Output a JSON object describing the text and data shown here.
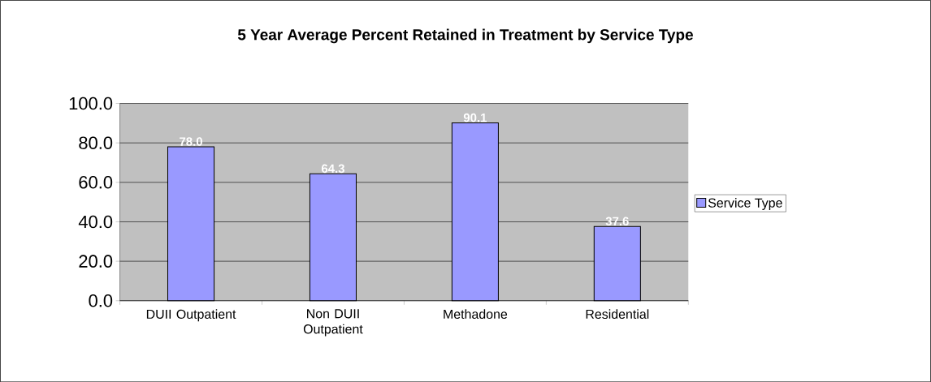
{
  "chart_data": {
    "type": "bar",
    "title": "5 Year Average Percent Retained in Treatment  by Service Type",
    "categories": [
      "DUII Outpatient",
      "Non DUII Outpatient",
      "Methadone",
      "Residential"
    ],
    "series": [
      {
        "name": "Service Type",
        "color": "#9999ff",
        "values": [
          78.0,
          64.3,
          90.1,
          37.6
        ],
        "value_labels": [
          "78.0",
          "64.3",
          "90.1",
          "37.6"
        ]
      }
    ],
    "ylim": [
      0,
      100
    ],
    "yticks": [
      {
        "value": 0,
        "label": "0.0"
      },
      {
        "value": 20,
        "label": "20.0"
      },
      {
        "value": 40,
        "label": "40.0"
      },
      {
        "value": 60,
        "label": "60.0"
      },
      {
        "value": 80,
        "label": "80.0"
      },
      {
        "value": 100,
        "label": "100.0"
      }
    ],
    "grid": "y",
    "legend": "right"
  }
}
